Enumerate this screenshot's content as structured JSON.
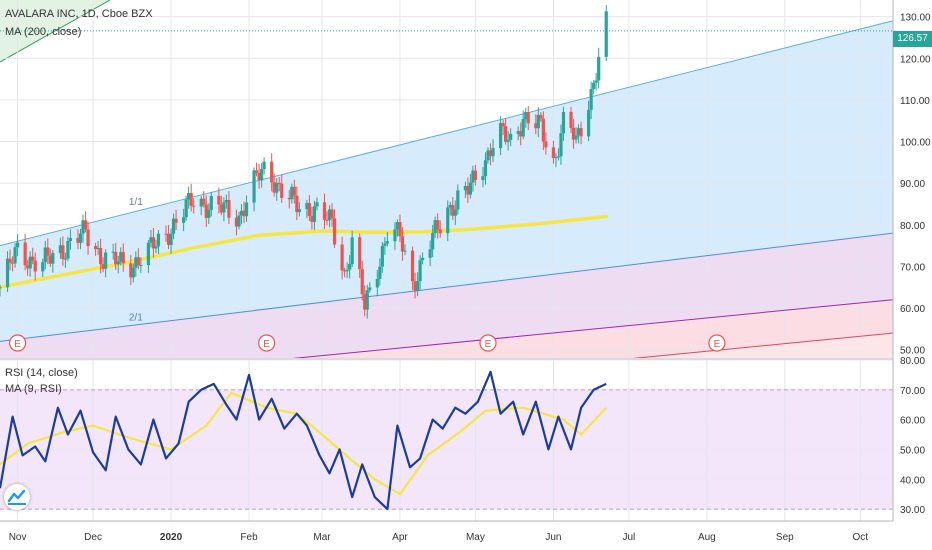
{
  "header": {
    "title": "AVALARA INC, 1D, Cboe BZX",
    "ma_label": "MA (200, close)"
  },
  "rsi_header": {
    "title": "RSI (14, close)",
    "ma_label": "MA (9, RSI)"
  },
  "last_price_label": "126.57",
  "fib_labels": [
    "1/1",
    "2/1"
  ],
  "earnings_label": "E",
  "colors": {
    "up": "#26a69a",
    "down": "#ef5350",
    "ma": "#f5e642",
    "rsi": "#1a3c9c",
    "rsi_ma": "#f5e642",
    "price_tag": "#26a69a"
  },
  "chart_data": [
    {
      "type": "candlestick",
      "title": "AVALARA INC, 1D, Cboe BZX",
      "ylim": [
        48,
        134
      ],
      "xlim": [
        "2019-10-25",
        "2020-10-14"
      ],
      "x_ticks": [
        "Nov",
        "Dec",
        "2020",
        "Feb",
        "Mar",
        "Apr",
        "May",
        "Jun",
        "Jul",
        "Aug",
        "Sep",
        "Oct"
      ],
      "x_tick_dates": [
        "2019-11-01",
        "2019-12-01",
        "2020-01-01",
        "2020-02-01",
        "2020-03-01",
        "2020-04-01",
        "2020-05-01",
        "2020-06-01",
        "2020-07-01",
        "2020-08-01",
        "2020-09-01",
        "2020-10-01"
      ],
      "y_ticks": [
        50,
        60,
        70,
        80,
        90,
        100,
        110,
        120,
        130
      ],
      "y_tick_labels": [
        "50.00",
        "60.00",
        "70.00",
        "80.00",
        "90.00",
        "100.00",
        "110.00",
        "120.00",
        "130.00"
      ],
      "last_price": 126.57,
      "close_path": {
        "dates": [
          "2019-10-25",
          "2019-11-01",
          "2019-11-10",
          "2019-11-18",
          "2019-11-28",
          "2019-12-05",
          "2019-12-15",
          "2019-12-24",
          "2020-01-02",
          "2020-01-10",
          "2020-01-20",
          "2020-01-28",
          "2020-02-03",
          "2020-02-08",
          "2020-02-14",
          "2020-02-21",
          "2020-02-27",
          "2020-03-05",
          "2020-03-10",
          "2020-03-13",
          "2020-03-18",
          "2020-03-23",
          "2020-03-27",
          "2020-04-01",
          "2020-04-06",
          "2020-04-12",
          "2020-04-20",
          "2020-04-28",
          "2020-05-05",
          "2020-05-10",
          "2020-05-15",
          "2020-05-20",
          "2020-05-27",
          "2020-06-01",
          "2020-06-06",
          "2020-06-10",
          "2020-06-16",
          "2020-06-22"
        ],
        "values": [
          65,
          74,
          70,
          74,
          78,
          72,
          70,
          74,
          80,
          86,
          84,
          82,
          90,
          94,
          88,
          84,
          84,
          80,
          68,
          76,
          60,
          70,
          78,
          77,
          66,
          74,
          84,
          88,
          96,
          102,
          100,
          106,
          103,
          95,
          107,
          99,
          112,
          128
        ]
      },
      "ma_path": {
        "dates": [
          "2019-10-25",
          "2019-11-15",
          "2019-12-15",
          "2020-01-10",
          "2020-02-05",
          "2020-03-01",
          "2020-03-20",
          "2020-04-10",
          "2020-05-01",
          "2020-05-25",
          "2020-06-22"
        ],
        "values": [
          65,
          67.5,
          71,
          74.5,
          77.5,
          78.5,
          78.2,
          78.3,
          79,
          80.2,
          82
        ]
      },
      "trend_lines": [
        {
          "name": "1/1",
          "points": [
            [
              "2019-10-25",
              75
            ],
            [
              "2020-10-14",
              129
            ]
          ]
        },
        {
          "name": "2/1",
          "points": [
            [
              "2019-10-25",
              52
            ],
            [
              "2020-10-14",
              78
            ]
          ]
        },
        {
          "points": [
            [
              "2019-10-25",
              41
            ],
            [
              "2020-10-14",
              62
            ]
          ]
        },
        {
          "points": [
            [
              "2019-10-25",
              33
            ],
            [
              "2020-10-14",
              54
            ]
          ]
        }
      ],
      "earnings_dates": [
        "2019-11-01",
        "2020-02-08",
        "2020-05-06",
        "2020-08-05"
      ]
    },
    {
      "type": "line",
      "title": "RSI (14, close)",
      "ylim": [
        26,
        80
      ],
      "y_ticks": [
        30,
        40,
        50,
        60,
        70,
        80
      ],
      "y_tick_labels": [
        "30.00",
        "40.00",
        "50.00",
        "60.00",
        "70.00",
        "80.00"
      ],
      "bands": [
        30,
        70
      ],
      "series": [
        {
          "name": "RSI (14, close)",
          "dates": [
            "2019-10-25",
            "2019-10-30",
            "2019-11-03",
            "2019-11-08",
            "2019-11-12",
            "2019-11-17",
            "2019-11-21",
            "2019-11-26",
            "2019-12-01",
            "2019-12-06",
            "2019-12-10",
            "2019-12-15",
            "2019-12-20",
            "2019-12-25",
            "2019-12-30",
            "2020-01-04",
            "2020-01-08",
            "2020-01-13",
            "2020-01-18",
            "2020-01-23",
            "2020-01-27",
            "2020-02-01",
            "2020-02-05",
            "2020-02-10",
            "2020-02-15",
            "2020-02-20",
            "2020-02-24",
            "2020-02-29",
            "2020-03-04",
            "2020-03-08",
            "2020-03-13",
            "2020-03-17",
            "2020-03-22",
            "2020-03-27",
            "2020-03-31",
            "2020-04-05",
            "2020-04-09",
            "2020-04-14",
            "2020-04-18",
            "2020-04-23",
            "2020-04-27",
            "2020-05-02",
            "2020-05-07",
            "2020-05-11",
            "2020-05-16",
            "2020-05-20",
            "2020-05-25",
            "2020-05-30",
            "2020-06-03",
            "2020-06-08",
            "2020-06-12",
            "2020-06-17",
            "2020-06-22"
          ],
          "values": [
            37,
            61,
            48,
            51,
            46,
            64,
            55,
            63,
            49,
            43,
            61,
            50,
            45,
            60,
            47,
            52,
            66,
            70,
            72,
            65,
            60,
            75,
            60,
            67,
            57,
            62,
            58,
            48,
            42,
            50,
            34,
            45,
            34,
            30,
            58,
            44,
            47,
            60,
            57,
            64,
            62,
            66,
            76,
            62,
            66,
            55,
            66,
            50,
            61,
            50,
            64,
            70,
            72
          ]
        },
        {
          "name": "MA (9, RSI)",
          "dates": [
            "2019-10-25",
            "2019-11-05",
            "2019-11-20",
            "2019-12-01",
            "2019-12-15",
            "2020-01-01",
            "2020-01-15",
            "2020-01-25",
            "2020-02-08",
            "2020-02-20",
            "2020-03-01",
            "2020-03-12",
            "2020-03-22",
            "2020-04-01",
            "2020-04-12",
            "2020-04-25",
            "2020-05-05",
            "2020-05-20",
            "2020-06-05",
            "2020-06-12",
            "2020-06-22"
          ],
          "values": [
            45,
            52,
            56,
            58,
            54,
            50,
            58,
            69,
            64,
            62,
            55,
            47,
            40,
            35,
            48,
            56,
            63,
            64,
            60,
            55,
            64
          ]
        }
      ]
    }
  ]
}
